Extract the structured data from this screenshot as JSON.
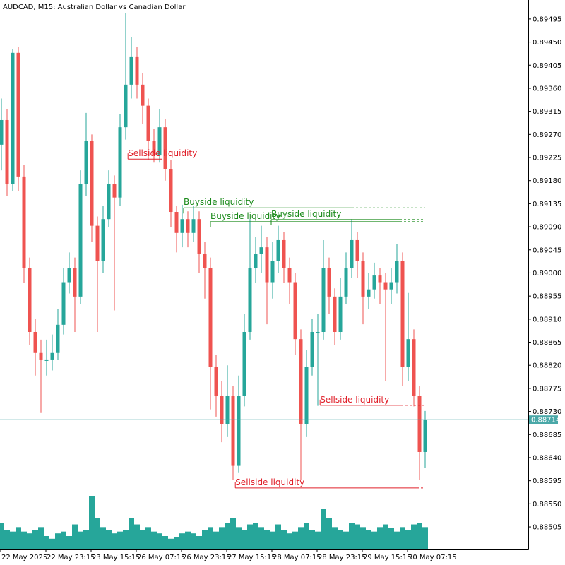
{
  "chart_data": {
    "type": "candlestick",
    "title": "AUDCAD, M15:  Australian Dollar vs Canadian Dollar",
    "up_color": "#26a69a",
    "down_color": "#ef5350",
    "volume_color": "#26a69a",
    "xlim": [
      -0.25,
      93.25
    ],
    "xticks": [
      {
        "value": 0,
        "label": "22 May 2025"
      },
      {
        "value": 8,
        "label": "22 May 23:15"
      },
      {
        "value": 16,
        "label": "23 May 15:15"
      },
      {
        "value": 24,
        "label": "26 May 07:15"
      },
      {
        "value": 32,
        "label": "26 May 23:15"
      },
      {
        "value": 40,
        "label": "27 May 15:15"
      },
      {
        "value": 48,
        "label": "28 May 07:15"
      },
      {
        "value": 56,
        "label": "28 May 23:15"
      },
      {
        "value": 64,
        "label": "29 May 15:15"
      },
      {
        "value": 72,
        "label": "30 May 07:15"
      }
    ],
    "ylim": [
      0.88461,
      0.89532
    ],
    "yticks": [
      0.89495,
      {
        "value": 0.8945,
        "label": "0.89450"
      },
      0.89405,
      {
        "value": 0.8936,
        "label": "0.89360"
      },
      0.89315,
      {
        "value": 0.8927,
        "label": "0.89270"
      },
      0.89225,
      {
        "value": 0.8918,
        "label": "0.89180"
      },
      0.89135,
      {
        "value": 0.8909,
        "label": "0.89090"
      },
      0.89045,
      {
        "value": 0.89,
        "label": "0.89000"
      },
      0.88955,
      {
        "value": 0.8891,
        "label": "0.88910"
      },
      0.88865,
      {
        "value": 0.8882,
        "label": "0.88820"
      },
      0.88775,
      {
        "value": 0.8873,
        "label": "0.88730"
      },
      0.88685,
      {
        "value": 0.8864,
        "label": "0.88640"
      },
      0.88595,
      {
        "value": 0.8855,
        "label": "0.88550"
      },
      0.88505
    ],
    "open": [
      0.8925,
      0.89298,
      0.89174,
      0.89429,
      0.89188,
      0.89009,
      0.88885,
      0.88844,
      0.8883,
      0.8883,
      0.88844,
      0.88899,
      0.88982,
      0.89009,
      0.88954,
      0.89174,
      0.89257,
      0.89092,
      0.89023,
      0.89105,
      0.89174,
      0.89147,
      0.89284,
      0.89367,
      0.89422,
      0.89367,
      0.89326,
      0.89257,
      0.89229,
      0.89284,
      0.89202,
      0.89119,
      0.89078,
      0.89105,
      0.89078,
      0.89105,
      0.89037,
      0.89009,
      0.88817,
      0.88761,
      0.88706,
      0.88761,
      0.88624,
      0.88761,
      0.88885,
      0.89009,
      0.89037,
      0.8905,
      0.88982,
      0.89023,
      0.89064,
      0.89009,
      0.88982,
      0.88871,
      0.88706,
      0.88817,
      0.88885,
      0.88885,
      0.89009,
      0.88954,
      0.88885,
      0.88954,
      0.89009,
      0.89064,
      0.89023,
      0.88954,
      0.88968,
      0.88995,
      0.88982,
      0.88968,
      0.88982,
      0.89023,
      0.88817,
      0.88871,
      0.88761,
      0.88651
    ],
    "high": [
      0.8934,
      0.8932,
      0.89436,
      0.8944,
      0.8921,
      0.8903,
      0.8891,
      0.8887,
      0.8887,
      0.8888,
      0.8893,
      0.8901,
      0.8904,
      0.8903,
      0.892,
      0.89312,
      0.8927,
      0.8911,
      0.8913,
      0.892,
      0.8919,
      0.8931,
      0.89507,
      0.8946,
      0.8944,
      0.8939,
      0.8934,
      0.8928,
      0.8932,
      0.893,
      0.8922,
      0.8913,
      0.89133,
      0.8912,
      0.8913,
      0.8912,
      0.8906,
      0.8903,
      0.8884,
      0.8879,
      0.8882,
      0.8878,
      0.888,
      0.8892,
      0.89105,
      0.8907,
      0.89092,
      0.8907,
      0.8906,
      0.89092,
      0.8908,
      0.8903,
      0.89,
      0.8889,
      0.8885,
      0.8891,
      0.8892,
      0.89064,
      0.8903,
      0.8897,
      0.8899,
      0.8904,
      0.89105,
      0.8908,
      0.8904,
      0.89,
      0.8902,
      0.8901,
      0.89,
      0.8901,
      0.89057,
      0.8904,
      0.88961,
      0.8889,
      0.8878,
      0.88731
    ],
    "low": [
      0.892,
      0.8915,
      0.8916,
      0.8916,
      0.8898,
      0.8886,
      0.888,
      0.88727,
      0.888,
      0.8881,
      0.8883,
      0.8888,
      0.8896,
      0.88885,
      0.8894,
      0.8915,
      0.8906,
      0.88885,
      0.89,
      0.8909,
      0.88927,
      0.8913,
      0.8926,
      0.8934,
      0.8934,
      0.8929,
      0.8922,
      0.89215,
      0.89215,
      0.8918,
      0.8909,
      0.8904,
      0.8905,
      0.8905,
      0.8906,
      0.89,
      0.8895,
      0.88734,
      0.8872,
      0.8867,
      0.8868,
      0.88596,
      0.8861,
      0.8874,
      0.8887,
      0.8898,
      0.89,
      0.889,
      0.8895,
      0.89,
      0.8898,
      0.8894,
      0.8884,
      0.88596,
      0.8868,
      0.888,
      0.88741,
      0.8887,
      0.8892,
      0.8886,
      0.8887,
      0.8894,
      0.8899,
      0.8899,
      0.889,
      0.8893,
      0.8895,
      0.8894,
      0.88789,
      0.8894,
      0.8896,
      0.8878,
      0.8879,
      0.8874,
      0.88596,
      0.8862
    ],
    "close": [
      0.89298,
      0.89174,
      0.89429,
      0.89188,
      0.89009,
      0.88885,
      0.88844,
      0.8883,
      0.8883,
      0.88844,
      0.88899,
      0.88982,
      0.89009,
      0.88954,
      0.89174,
      0.89257,
      0.89092,
      0.89023,
      0.89105,
      0.89174,
      0.89147,
      0.89284,
      0.89367,
      0.89422,
      0.89367,
      0.89326,
      0.89257,
      0.89229,
      0.89284,
      0.89202,
      0.89119,
      0.89078,
      0.89105,
      0.89078,
      0.89105,
      0.89037,
      0.89009,
      0.88817,
      0.88761,
      0.88706,
      0.88761,
      0.88624,
      0.88761,
      0.88885,
      0.89009,
      0.89037,
      0.8905,
      0.88982,
      0.89023,
      0.89064,
      0.89009,
      0.88982,
      0.88871,
      0.88706,
      0.88817,
      0.88885,
      0.88885,
      0.89009,
      0.88954,
      0.88885,
      0.88954,
      0.89009,
      0.89064,
      0.89023,
      0.88954,
      0.88968,
      0.88995,
      0.88982,
      0.88968,
      0.88982,
      0.89023,
      0.88817,
      0.88871,
      0.88761,
      0.88651,
      0.88714
    ],
    "volume": [
      30,
      22,
      20,
      25,
      20,
      18,
      22,
      25,
      15,
      12,
      18,
      20,
      15,
      28,
      20,
      22,
      60,
      35,
      25,
      22,
      18,
      20,
      22,
      35,
      28,
      22,
      25,
      20,
      18,
      15,
      12,
      14,
      18,
      20,
      18,
      15,
      22,
      25,
      20,
      25,
      30,
      35,
      25,
      22,
      28,
      30,
      25,
      22,
      20,
      28,
      22,
      18,
      20,
      25,
      30,
      22,
      20,
      45,
      35,
      25,
      22,
      20,
      30,
      28,
      25,
      22,
      20,
      25,
      28,
      24,
      20,
      25,
      22,
      28,
      30,
      25
    ],
    "last": 0.88714,
    "last_color": "#4aa8a8",
    "levels": [
      {
        "label": "Sellside liquidity",
        "price": 0.89222,
        "from": 22.4,
        "to": 28.5,
        "color": "#e0202a",
        "extend": false
      },
      {
        "label": "Buyside liquidity",
        "price": 0.89127,
        "from": 32.25,
        "to": 62,
        "color": "#1a8a1a",
        "extend": true
      },
      {
        "label": "Buyside liquidity",
        "price": 0.891,
        "from": 37,
        "to": 70.5,
        "color": "#1a8a1a",
        "extend": true
      },
      {
        "label": "Buyside liquidity",
        "price": 0.89104,
        "from": 47.75,
        "to": 70.5,
        "color": "#1a8a1a",
        "extend": true
      },
      {
        "label": "Sellside liquidity",
        "price": 0.88742,
        "from": 56.4,
        "to": 70.75,
        "color": "#e0202a",
        "extend": true
      },
      {
        "label": "Sellside liquidity",
        "price": 0.88581,
        "from": 41.4,
        "to": 73.5,
        "color": "#e0202a",
        "extend": true
      }
    ]
  }
}
